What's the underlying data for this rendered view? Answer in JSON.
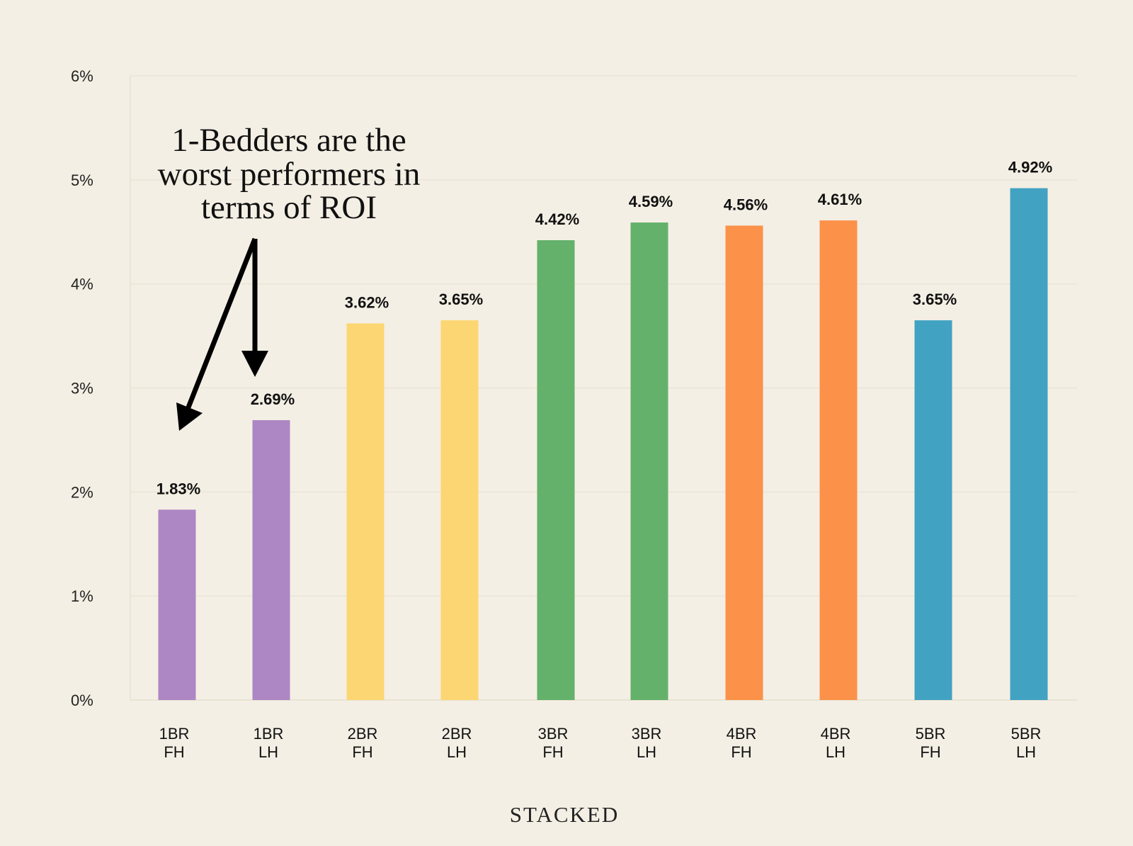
{
  "chart_data": {
    "type": "bar",
    "title": "",
    "xlabel": "",
    "ylabel": "",
    "ylim": [
      0,
      6
    ],
    "yticks": [
      "0%",
      "1%",
      "2%",
      "3%",
      "4%",
      "5%",
      "6%"
    ],
    "grid": true,
    "categories": [
      [
        "1BR",
        "FH"
      ],
      [
        "1BR",
        "LH"
      ],
      [
        "2BR",
        "FH"
      ],
      [
        "2BR",
        "LH"
      ],
      [
        "3BR",
        "FH"
      ],
      [
        "3BR",
        "LH"
      ],
      [
        "4BR",
        "FH"
      ],
      [
        "4BR",
        "LH"
      ],
      [
        "5BR",
        "FH"
      ],
      [
        "5BR",
        "LH"
      ]
    ],
    "values": [
      1.83,
      2.69,
      3.62,
      3.65,
      4.42,
      4.59,
      4.56,
      4.61,
      3.65,
      4.92
    ],
    "data_labels": [
      "1.83%",
      "2.69%",
      "3.62%",
      "3.65%",
      "4.42%",
      "4.59%",
      "4.56%",
      "4.61%",
      "3.65%",
      "4.92%"
    ],
    "colors": [
      "#AD87C4",
      "#AD87C4",
      "#FCD672",
      "#FCD672",
      "#64B16B",
      "#64B16B",
      "#FC914A",
      "#FC914A",
      "#42A2C2",
      "#42A2C2"
    ],
    "annotation": [
      "1-Bedders are the",
      "worst performers in",
      "terms of ROI"
    ]
  },
  "brand": "STACKED",
  "colors": {
    "background": "#F4EFE4",
    "grid": "#E8E2D4",
    "text": "#111111"
  }
}
